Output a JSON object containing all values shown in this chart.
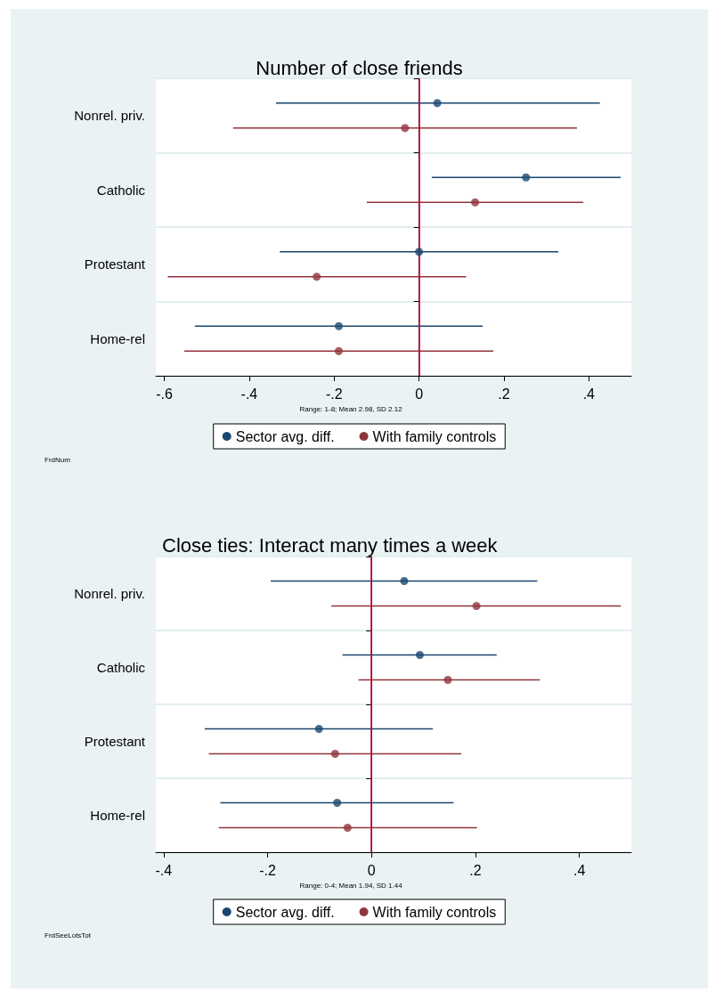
{
  "chart_data": [
    {
      "type": "scatter",
      "orientation": "horizontal",
      "title": "Number of close friends",
      "categories": [
        "Nonrel. priv.",
        "Catholic",
        "Protestant",
        "Home-rel"
      ],
      "series": [
        {
          "name": "Sector avg. diff.",
          "color": "#1a476f",
          "values": [
            0.043,
            0.252,
            0.0,
            -0.189
          ],
          "errors": [
            [
              -0.337,
              0.426
            ],
            [
              0.03,
              0.475
            ],
            [
              -0.328,
              0.328
            ],
            [
              -0.528,
              0.15
            ]
          ]
        },
        {
          "name": "With family controls",
          "color": "#90353b",
          "values": [
            -0.033,
            0.132,
            -0.241,
            -0.189
          ],
          "errors": [
            [
              -0.438,
              0.372
            ],
            [
              -0.123,
              0.387
            ],
            [
              -0.592,
              0.111
            ],
            [
              -0.553,
              0.175
            ]
          ]
        }
      ],
      "xlim": [
        -0.62,
        0.5
      ],
      "xticks": [
        {
          "value": -0.6,
          "label": "-.6"
        },
        {
          "value": -0.4,
          "label": "-.4"
        },
        {
          "value": -0.2,
          "label": "-.2"
        },
        0,
        {
          "value": 0.2,
          "label": ".2"
        },
        {
          "value": 0.4,
          "label": ".4"
        }
      ],
      "ref_lines": [
        {
          "axis": "x",
          "value": 0,
          "color": "#c10534"
        }
      ],
      "grid": "y",
      "legend": "bottom",
      "marker": "circle",
      "annotations": [
        "Range: 1-8; Mean 2.98, SD 2.12",
        "FrdNum"
      ]
    },
    {
      "type": "scatter",
      "orientation": "horizontal",
      "title": "Close ties: Interact many times a week",
      "categories": [
        "Nonrel. priv.",
        "Catholic",
        "Protestant",
        "Home-rel"
      ],
      "series": [
        {
          "name": "Sector avg. diff.",
          "color": "#1a476f",
          "values": [
            0.063,
            0.093,
            -0.101,
            -0.066
          ],
          "errors": [
            [
              -0.194,
              0.319
            ],
            [
              -0.056,
              0.241
            ],
            [
              -0.321,
              0.118
            ],
            [
              -0.291,
              0.158
            ]
          ]
        },
        {
          "name": "With family controls",
          "color": "#90353b",
          "values": [
            0.202,
            0.147,
            -0.07,
            -0.046
          ],
          "errors": [
            [
              -0.077,
              0.48
            ],
            [
              -0.025,
              0.324
            ],
            [
              -0.313,
              0.173
            ],
            [
              -0.294,
              0.203
            ]
          ]
        }
      ],
      "xlim": [
        -0.415,
        0.5
      ],
      "xticks": [
        {
          "value": -0.4,
          "label": "-.4"
        },
        {
          "value": -0.2,
          "label": "-.2"
        },
        0,
        {
          "value": 0.2,
          "label": ".2"
        },
        {
          "value": 0.4,
          "label": ".4"
        }
      ],
      "ref_lines": [
        {
          "axis": "x",
          "value": 0,
          "color": "#c10534"
        }
      ],
      "grid": "y",
      "legend": "bottom",
      "marker": "circle",
      "annotations": [
        "Range: 0-4; Mean 1.94, SD 1.44",
        "FrdSeeLotsTot"
      ]
    }
  ]
}
